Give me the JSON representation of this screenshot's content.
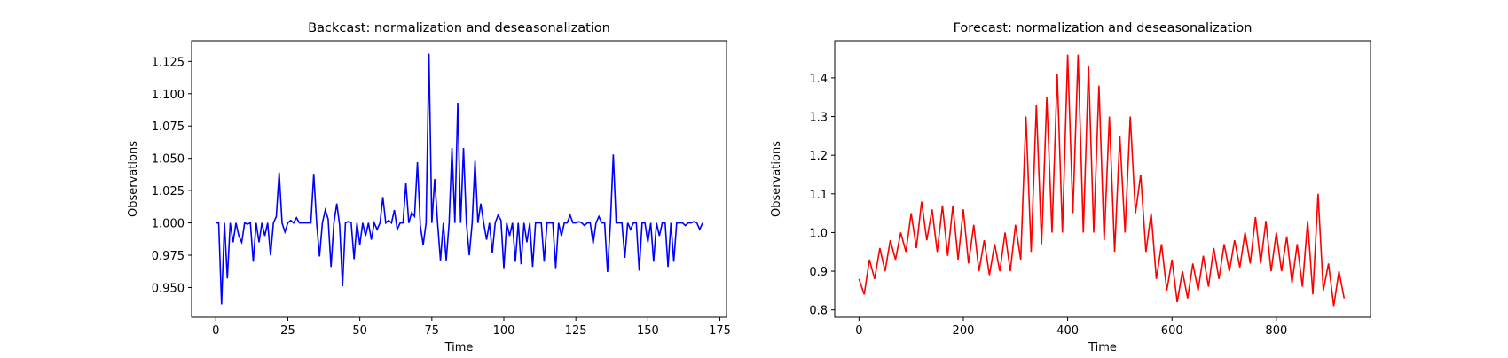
{
  "chart_data": [
    {
      "type": "line",
      "title": "Backcast: normalization and deseasonalization",
      "xlabel": "Time",
      "ylabel": "Observations",
      "color": "#0000ff",
      "x": [
        0,
        1,
        2,
        3,
        4,
        5,
        6,
        7,
        8,
        9,
        10,
        11,
        12,
        13,
        14,
        15,
        16,
        17,
        18,
        19,
        20,
        21,
        22,
        23,
        24,
        25,
        26,
        27,
        28,
        29,
        30,
        31,
        32,
        33,
        34,
        35,
        36,
        37,
        38,
        39,
        40,
        41,
        42,
        43,
        44,
        45,
        46,
        47,
        48,
        49,
        50,
        51,
        52,
        53,
        54,
        55,
        56,
        57,
        58,
        59,
        60,
        61,
        62,
        63,
        64,
        65,
        66,
        67,
        68,
        69,
        70,
        71,
        72,
        73,
        74,
        75,
        76,
        77,
        78,
        79,
        80,
        81,
        82,
        83,
        84,
        85,
        86,
        87,
        88,
        89,
        90,
        91,
        92,
        93,
        94,
        95,
        96,
        97,
        98,
        99,
        100,
        101,
        102,
        103,
        104,
        105,
        106,
        107,
        108,
        109,
        110,
        111,
        112,
        113,
        114,
        115,
        116,
        117,
        118,
        119,
        120,
        121,
        122,
        123,
        124,
        125,
        126,
        127,
        128,
        129,
        130,
        131,
        132,
        133,
        134,
        135,
        136,
        137,
        138,
        139,
        140,
        141,
        142,
        143,
        144,
        145,
        146,
        147,
        148,
        149,
        150,
        151,
        152,
        153,
        154,
        155,
        156,
        157,
        158,
        159,
        160,
        161,
        162,
        163,
        164,
        165,
        166,
        167,
        168,
        169
      ],
      "values": [
        1.0,
        1.0,
        0.937,
        1.0,
        0.957,
        1.0,
        0.985,
        1.0,
        0.99,
        0.985,
        1.0,
        0.999,
        1.0,
        0.97,
        1.0,
        0.985,
        1.0,
        0.99,
        1.0,
        0.975,
        1.0,
        1.005,
        1.039,
        1.0,
        0.993,
        1.0,
        1.002,
        1.0,
        1.004,
        1.0,
        1.0,
        1.0,
        1.0,
        1.0,
        1.038,
        1.0,
        0.974,
        1.0,
        1.01,
        1.003,
        0.966,
        1.0,
        1.015,
        0.998,
        0.951,
        1.0,
        1.001,
        1.0,
        0.972,
        1.0,
        0.983,
        1.0,
        0.99,
        1.0,
        0.987,
        1.0,
        0.995,
        1.0,
        1.02,
        1.0,
        1.002,
        1.0,
        1.01,
        0.995,
        1.0,
        1.0,
        1.031,
        1.0,
        1.008,
        1.005,
        1.047,
        0.998,
        0.983,
        1.0,
        1.131,
        1.0,
        1.034,
        1.0,
        0.971,
        1.0,
        0.971,
        1.0,
        1.058,
        1.0,
        1.093,
        1.0,
        1.058,
        1.0,
        0.975,
        1.0,
        1.048,
        1.0,
        1.015,
        1.0,
        0.987,
        1.0,
        0.977,
        1.0,
        1.006,
        1.002,
        0.965,
        1.0,
        0.99,
        1.0,
        0.97,
        1.0,
        0.968,
        1.0,
        0.985,
        1.0,
        0.966,
        1.0,
        1.0,
        1.0,
        0.97,
        1.0,
        1.0,
        1.0,
        0.965,
        1.0,
        0.99,
        1.0,
        1.0,
        1.006,
        1.0,
        1.0,
        1.001,
        1.0,
        0.998,
        1.0,
        1.0,
        0.984,
        1.0,
        1.005,
        1.0,
        1.0,
        0.962,
        1.0,
        1.053,
        1.0,
        1.0,
        1.0,
        0.973,
        1.0,
        0.995,
        1.0,
        1.0,
        0.963,
        1.0,
        1.0,
        0.985,
        1.0,
        0.97,
        1.0,
        0.99,
        1.0,
        1.0,
        0.966,
        1.0,
        0.97,
        1.0,
        1.0,
        1.0,
        0.998,
        1.0,
        1.0,
        1.001,
        1.0,
        0.995,
        1.0
      ],
      "xlim": [
        -8.4,
        177.3
      ],
      "ylim": [
        0.927,
        1.141
      ],
      "xticks": [
        0,
        25,
        50,
        75,
        100,
        125,
        150,
        175
      ],
      "yticks": [
        {
          "value": 0.95,
          "label": "0.950"
        },
        0.975,
        {
          "value": 1.0,
          "label": "1.000"
        },
        1.025,
        {
          "value": 1.05,
          "label": "1.050"
        },
        1.075,
        {
          "value": 1.1,
          "label": "1.100"
        },
        1.125
      ]
    },
    {
      "type": "line",
      "title": "Forecast: normalization and deseasonalization",
      "xlabel": "Time",
      "ylabel": "Observations",
      "color": "#ff0000",
      "x": [
        0,
        10,
        20,
        30,
        40,
        50,
        60,
        70,
        80,
        90,
        100,
        110,
        120,
        130,
        140,
        150,
        160,
        170,
        180,
        190,
        200,
        210,
        220,
        230,
        240,
        250,
        260,
        270,
        280,
        290,
        300,
        310,
        320,
        330,
        340,
        350,
        360,
        370,
        380,
        390,
        400,
        410,
        420,
        430,
        440,
        450,
        460,
        470,
        480,
        490,
        500,
        510,
        520,
        530,
        540,
        550,
        560,
        570,
        580,
        590,
        600,
        610,
        620,
        630,
        640,
        650,
        660,
        670,
        680,
        690,
        700,
        710,
        720,
        730,
        740,
        750,
        760,
        770,
        780,
        790,
        800,
        810,
        820,
        830,
        840,
        850,
        860,
        870,
        880,
        890,
        900,
        910,
        920,
        930
      ],
      "values": [
        0.88,
        0.84,
        0.93,
        0.88,
        0.96,
        0.9,
        0.98,
        0.93,
        1.0,
        0.95,
        1.05,
        0.96,
        1.08,
        0.98,
        1.06,
        0.95,
        1.07,
        0.94,
        1.07,
        0.93,
        1.06,
        0.92,
        1.02,
        0.9,
        0.98,
        0.89,
        0.97,
        0.9,
        1.0,
        0.9,
        1.02,
        0.93,
        1.3,
        0.95,
        1.33,
        0.97,
        1.35,
        1.0,
        1.41,
        1.0,
        1.46,
        1.05,
        1.46,
        1.0,
        1.43,
        1.0,
        1.38,
        0.98,
        1.3,
        0.95,
        1.25,
        1.0,
        1.3,
        1.05,
        1.15,
        0.95,
        1.05,
        0.88,
        0.97,
        0.85,
        0.93,
        0.82,
        0.9,
        0.83,
        0.92,
        0.85,
        0.94,
        0.86,
        0.96,
        0.88,
        0.97,
        0.9,
        0.98,
        0.91,
        1.0,
        0.92,
        1.04,
        0.92,
        1.03,
        0.9,
        1.0,
        0.9,
        0.99,
        0.87,
        0.97,
        0.86,
        1.03,
        0.84,
        1.1,
        0.85,
        0.92,
        0.81,
        0.9,
        0.83
      ],
      "xlim": [
        -46.5,
        980.5
      ],
      "ylim": [
        0.781,
        1.496
      ],
      "xticks": [
        0,
        200,
        400,
        600,
        800
      ],
      "yticks": [
        0.8,
        0.9,
        {
          "value": 1.0,
          "label": "1.0"
        },
        1.1,
        1.2,
        1.3,
        1.4
      ]
    }
  ]
}
